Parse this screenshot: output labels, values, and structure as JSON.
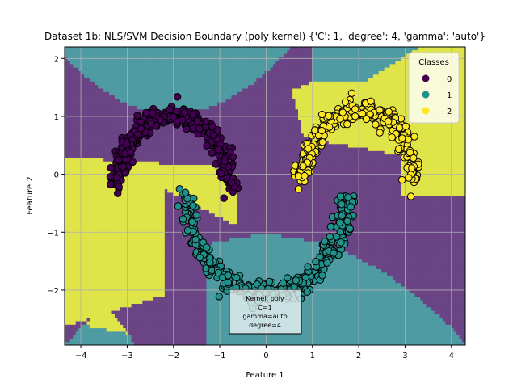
{
  "chart_data": {
    "type": "scatter",
    "title": "Dataset 1b: NLS/SVM Decision Boundary (poly kernel) {'C': 1, 'degree': 4, 'gamma': 'auto'}",
    "xlabel": "Feature 1",
    "ylabel": "Feature 2",
    "xlim": [
      -4.35,
      4.3
    ],
    "ylim": [
      -2.95,
      2.2
    ],
    "xticks": [
      -4,
      -3,
      -2,
      -1,
      0,
      1,
      2,
      3,
      4
    ],
    "yticks": [
      -2,
      -1,
      0,
      1,
      2
    ],
    "grid": true,
    "background": "decision-regions",
    "legend": {
      "title": "Classes",
      "placement": "top-right",
      "entries": [
        {
          "label": "0",
          "color": "#440154"
        },
        {
          "label": "1",
          "color": "#21918c"
        },
        {
          "label": "2",
          "color": "#fde725"
        }
      ]
    },
    "region_colors": {
      "0": "#6a4485",
      "1": "#4f9ba3",
      "2": "#dfe549"
    },
    "series": [
      {
        "name": "0",
        "color": "#440154",
        "shape": "arc",
        "center": [
          -2.0,
          -0.2
        ],
        "radius": 1.2,
        "angle_from": 0,
        "angle_to": 180,
        "noise": 0.09,
        "count": 320
      },
      {
        "name": "1",
        "color": "#21918c",
        "shape": "arc",
        "center": [
          0.0,
          -0.35
        ],
        "radius": 1.7,
        "angle_from": 180,
        "angle_to": 360,
        "noise": 0.1,
        "count": 380
      },
      {
        "name": "2",
        "color": "#fde725",
        "shape": "arc",
        "center": [
          2.0,
          -0.1
        ],
        "radius": 1.2,
        "angle_from": 0,
        "angle_to": 180,
        "noise": 0.09,
        "count": 300
      }
    ],
    "annotation": {
      "lines": [
        "Kernel: poly",
        "C=1",
        "gamma=auto",
        "degree=4"
      ]
    }
  }
}
